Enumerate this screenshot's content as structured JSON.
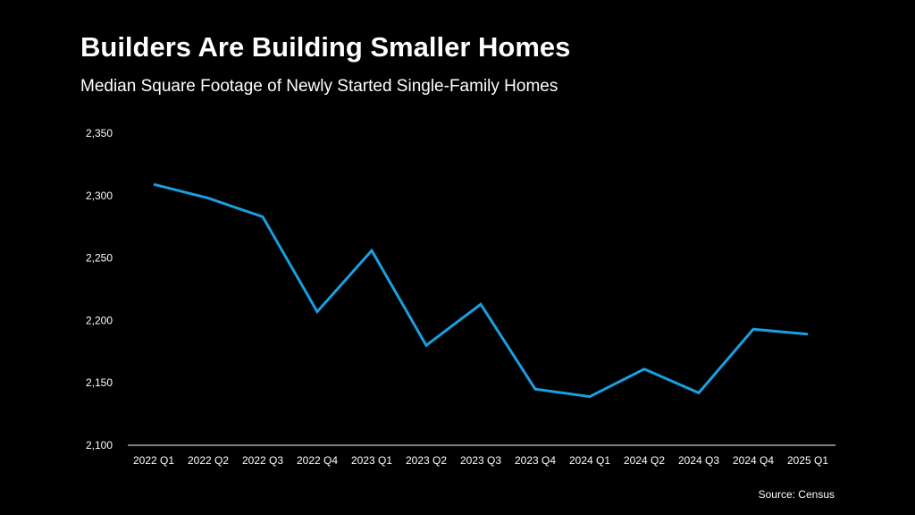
{
  "chart_data": {
    "type": "line",
    "title": "Builders Are Building Smaller Homes",
    "subtitle": "Median Square Footage of Newly Started Single-Family Homes",
    "source": "Source: Census",
    "categories": [
      "2022 Q1",
      "2022 Q2",
      "2022 Q3",
      "2022 Q4",
      "2023 Q1",
      "2023 Q2",
      "2023 Q3",
      "2023 Q4",
      "2024 Q1",
      "2024 Q2",
      "2024 Q3",
      "2024 Q4",
      "2025 Q1"
    ],
    "series": [
      {
        "values": [
          2309,
          2298,
          2283,
          2207,
          2256,
          2180,
          2213,
          2145,
          2139,
          2161,
          2142,
          2193,
          2189
        ]
      }
    ],
    "yticks": [
      "2,100",
      "2,150",
      "2,200",
      "2,250",
      "2,300",
      "2,350"
    ],
    "ylim": [
      2100,
      2350
    ],
    "xlabel": "",
    "ylabel": "",
    "grid": false,
    "colors": {
      "background": "#000000",
      "line": "#1a9fe0",
      "text": "#ffffff",
      "axis": "#ffffff"
    }
  }
}
